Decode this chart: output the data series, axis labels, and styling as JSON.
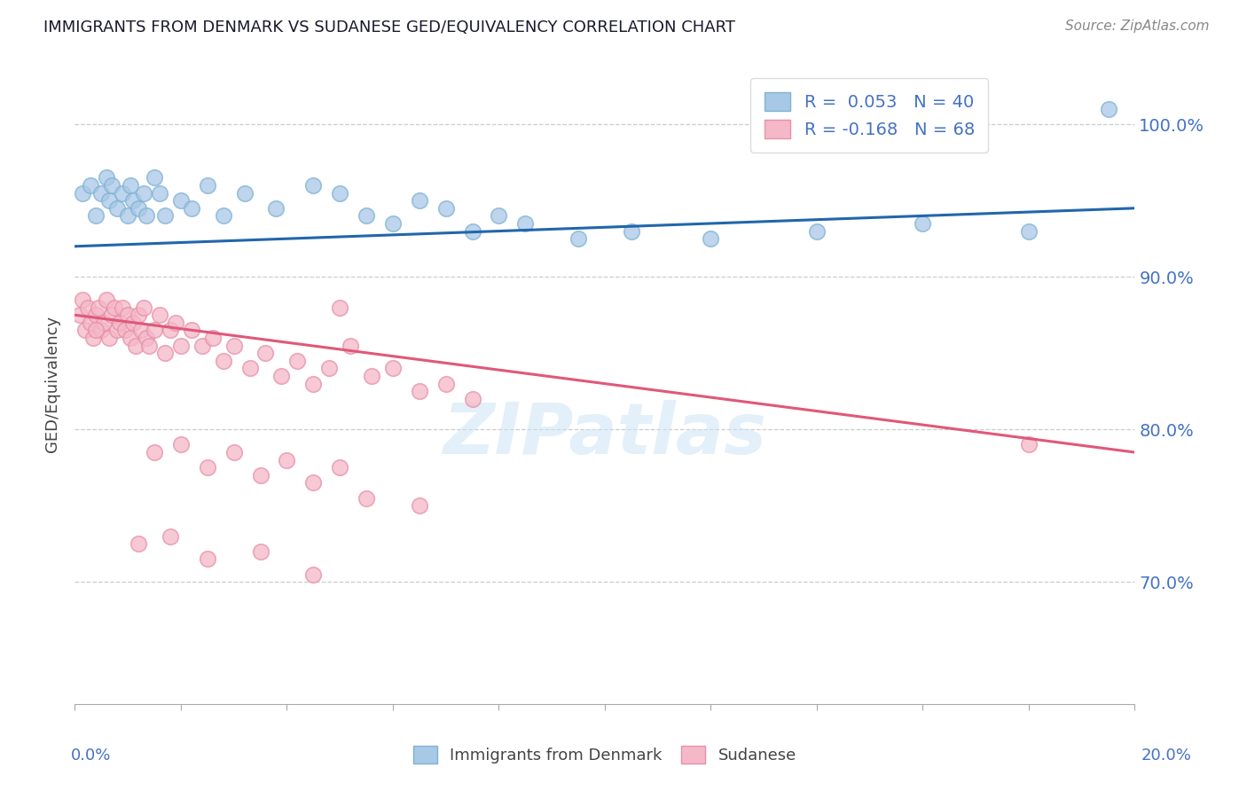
{
  "title": "IMMIGRANTS FROM DENMARK VS SUDANESE GED/EQUIVALENCY CORRELATION CHART",
  "source": "Source: ZipAtlas.com",
  "ylabel": "GED/Equivalency",
  "ytick_vals": [
    70,
    80,
    90,
    100
  ],
  "xlim": [
    0,
    20
  ],
  "ylim": [
    62,
    104
  ],
  "legend1_label": "R =  0.053   N = 40",
  "legend2_label": "R = -0.168   N = 68",
  "legend_series1": "Immigrants from Denmark",
  "legend_series2": "Sudanese",
  "blue_color": "#a8c8e8",
  "blue_edge": "#7fb3d3",
  "pink_color": "#f4b8c8",
  "pink_edge": "#e890a8",
  "trend_blue": "#2166ac",
  "trend_pink": "#e05878",
  "watermark": "ZIPatlas",
  "denmark_scatter": [
    [
      0.15,
      95.5
    ],
    [
      0.3,
      96.0
    ],
    [
      0.4,
      94.0
    ],
    [
      0.5,
      95.5
    ],
    [
      0.6,
      96.5
    ],
    [
      0.65,
      95.0
    ],
    [
      0.7,
      96.0
    ],
    [
      0.8,
      94.5
    ],
    [
      0.9,
      95.5
    ],
    [
      1.0,
      94.0
    ],
    [
      1.05,
      96.0
    ],
    [
      1.1,
      95.0
    ],
    [
      1.2,
      94.5
    ],
    [
      1.3,
      95.5
    ],
    [
      1.35,
      94.0
    ],
    [
      1.5,
      96.5
    ],
    [
      1.6,
      95.5
    ],
    [
      1.7,
      94.0
    ],
    [
      2.0,
      95.0
    ],
    [
      2.2,
      94.5
    ],
    [
      2.5,
      96.0
    ],
    [
      2.8,
      94.0
    ],
    [
      3.2,
      95.5
    ],
    [
      3.8,
      94.5
    ],
    [
      4.5,
      96.0
    ],
    [
      5.0,
      95.5
    ],
    [
      5.5,
      94.0
    ],
    [
      6.0,
      93.5
    ],
    [
      6.5,
      95.0
    ],
    [
      7.0,
      94.5
    ],
    [
      7.5,
      93.0
    ],
    [
      8.0,
      94.0
    ],
    [
      8.5,
      93.5
    ],
    [
      9.5,
      92.5
    ],
    [
      10.5,
      93.0
    ],
    [
      12.0,
      92.5
    ],
    [
      14.0,
      93.0
    ],
    [
      16.0,
      93.5
    ],
    [
      18.0,
      93.0
    ],
    [
      19.5,
      101.0
    ]
  ],
  "sudanese_scatter": [
    [
      0.1,
      87.5
    ],
    [
      0.15,
      88.5
    ],
    [
      0.2,
      86.5
    ],
    [
      0.25,
      88.0
    ],
    [
      0.3,
      87.0
    ],
    [
      0.35,
      86.0
    ],
    [
      0.4,
      87.5
    ],
    [
      0.45,
      88.0
    ],
    [
      0.5,
      86.5
    ],
    [
      0.55,
      87.0
    ],
    [
      0.6,
      88.5
    ],
    [
      0.65,
      86.0
    ],
    [
      0.7,
      87.5
    ],
    [
      0.75,
      88.0
    ],
    [
      0.8,
      86.5
    ],
    [
      0.85,
      87.0
    ],
    [
      0.9,
      88.0
    ],
    [
      0.95,
      86.5
    ],
    [
      1.0,
      87.5
    ],
    [
      1.05,
      86.0
    ],
    [
      1.1,
      87.0
    ],
    [
      1.15,
      85.5
    ],
    [
      1.2,
      87.5
    ],
    [
      1.25,
      86.5
    ],
    [
      1.3,
      88.0
    ],
    [
      1.35,
      86.0
    ],
    [
      1.4,
      85.5
    ],
    [
      1.5,
      86.5
    ],
    [
      1.6,
      87.5
    ],
    [
      1.7,
      85.0
    ],
    [
      1.8,
      86.5
    ],
    [
      1.9,
      87.0
    ],
    [
      2.0,
      85.5
    ],
    [
      2.2,
      86.5
    ],
    [
      2.4,
      85.5
    ],
    [
      2.6,
      86.0
    ],
    [
      2.8,
      84.5
    ],
    [
      3.0,
      85.5
    ],
    [
      3.3,
      84.0
    ],
    [
      3.6,
      85.0
    ],
    [
      3.9,
      83.5
    ],
    [
      4.2,
      84.5
    ],
    [
      4.5,
      83.0
    ],
    [
      4.8,
      84.0
    ],
    [
      5.2,
      85.5
    ],
    [
      5.6,
      83.5
    ],
    [
      6.0,
      84.0
    ],
    [
      6.5,
      82.5
    ],
    [
      7.0,
      83.0
    ],
    [
      7.5,
      82.0
    ],
    [
      1.5,
      78.5
    ],
    [
      2.0,
      79.0
    ],
    [
      2.5,
      77.5
    ],
    [
      3.0,
      78.5
    ],
    [
      3.5,
      77.0
    ],
    [
      4.0,
      78.0
    ],
    [
      4.5,
      76.5
    ],
    [
      5.0,
      77.5
    ],
    [
      5.5,
      75.5
    ],
    [
      6.5,
      75.0
    ],
    [
      1.2,
      72.5
    ],
    [
      1.8,
      73.0
    ],
    [
      2.5,
      71.5
    ],
    [
      3.5,
      72.0
    ],
    [
      4.5,
      70.5
    ],
    [
      0.4,
      86.5
    ],
    [
      5.0,
      88.0
    ],
    [
      18.0,
      79.0
    ]
  ],
  "blue_trend_x": [
    0,
    20
  ],
  "blue_trend_y": [
    92.0,
    94.5
  ],
  "pink_trend_x": [
    0,
    20
  ],
  "pink_trend_y": [
    87.5,
    78.5
  ]
}
